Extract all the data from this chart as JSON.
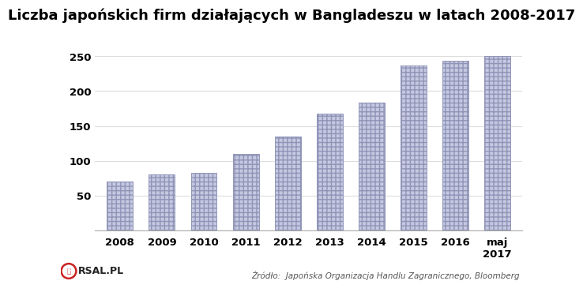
{
  "title": "Liczba japońskich firm działających w Bangladeszu w latach 2008-2017",
  "categories": [
    "2008",
    "2009",
    "2010",
    "2011",
    "2012",
    "2013",
    "2014",
    "2015",
    "2016",
    "maj\n2017"
  ],
  "values": [
    70,
    81,
    83,
    110,
    135,
    168,
    184,
    237,
    243,
    250
  ],
  "bar_color": "#c5c8e0",
  "bar_edge_color": "#9095b8",
  "background_color": "#ffffff",
  "yticks": [
    50,
    100,
    150,
    200,
    250
  ],
  "ylim": [
    0,
    270
  ],
  "grid_color": "#dddddd",
  "source_text": "Źródło:  Japońska Organizacja Handlu Zagranicznego, Bloomberg",
  "title_fontsize": 13,
  "tick_fontsize": 9.5,
  "source_fontsize": 7.5
}
